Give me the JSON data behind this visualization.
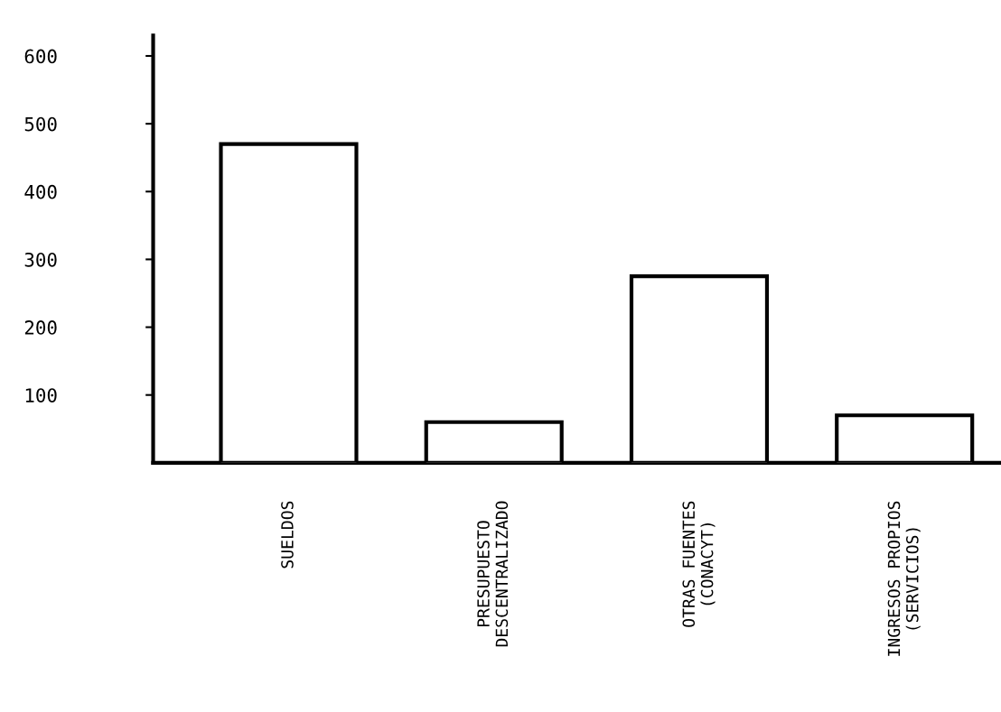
{
  "chart_data": {
    "type": "bar",
    "categories": [
      "SUELDOS",
      "PRESUPUESTO\nDESCENTRALIZADO",
      "OTRAS FUENTES\n(CONACYT)",
      "INGRESOS PROPIOS\n(SERVICIOS)"
    ],
    "values": [
      470,
      60,
      275,
      70
    ],
    "color": "#ffffff",
    "ylim": [
      0,
      630
    ],
    "yticks": [
      100,
      200,
      300,
      400,
      500,
      600
    ],
    "grid": false
  }
}
